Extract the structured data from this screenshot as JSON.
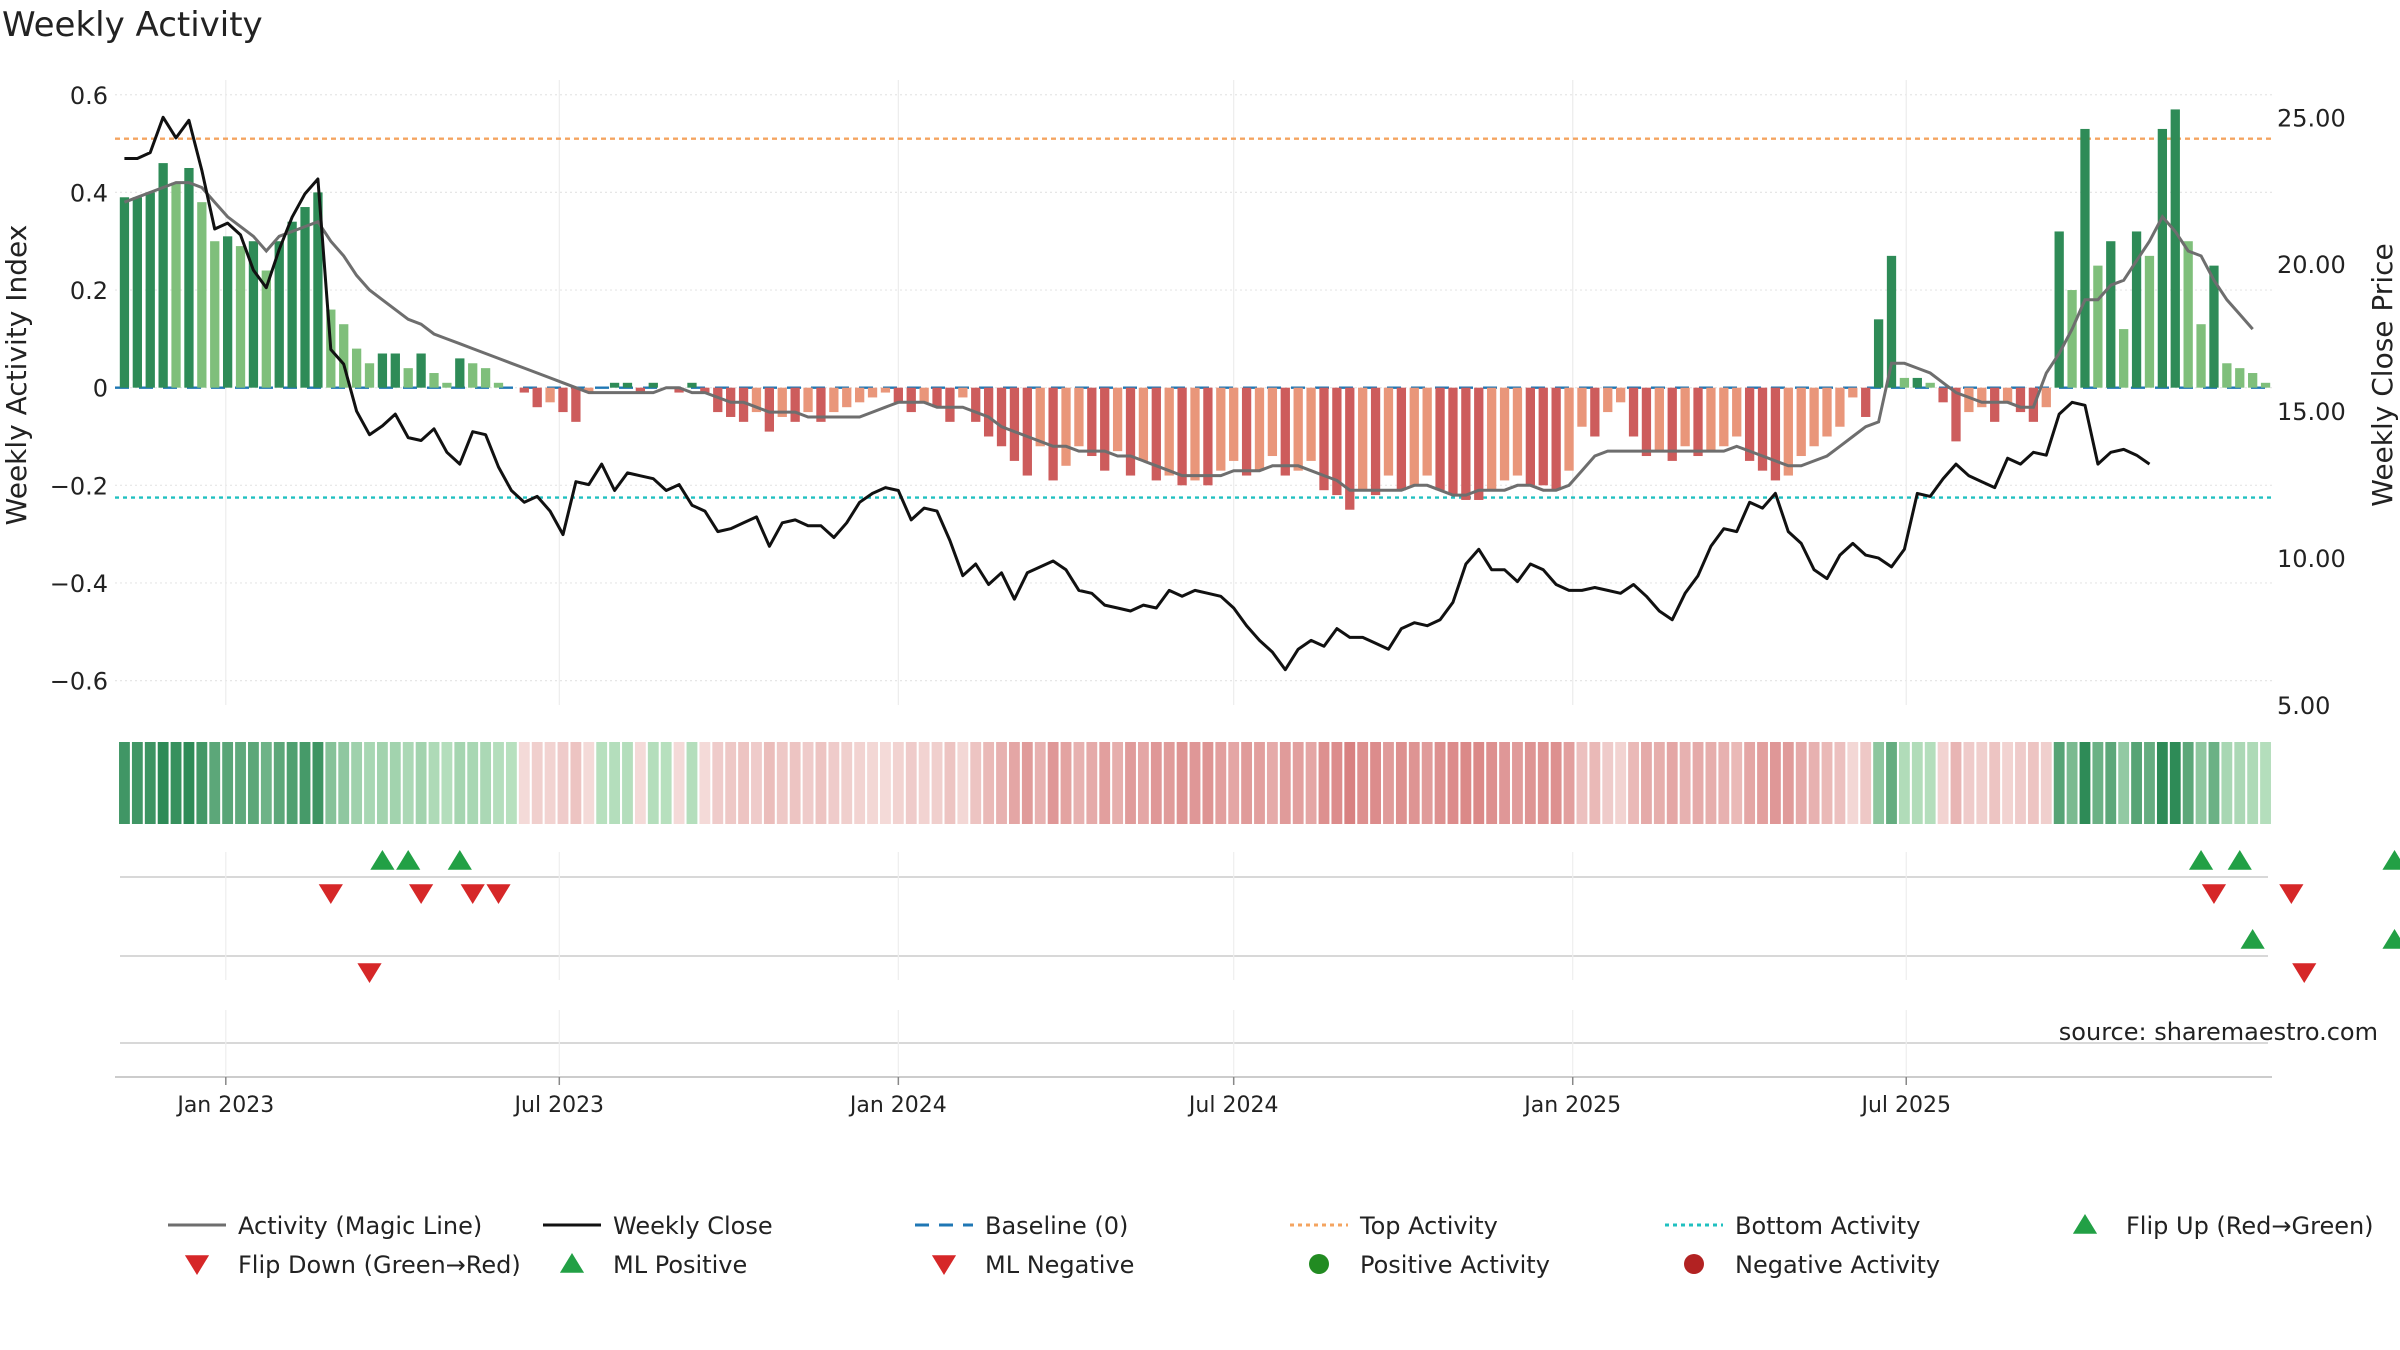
{
  "chart_data": {
    "type": "bar",
    "title": "Weekly Activity",
    "ylabel_left": "Weekly Activity Index",
    "ylabel_right": "Weekly Close Price",
    "source": "source: sharemaestro.com",
    "x_ticks": [
      "Jan 2023",
      "Jul 2023",
      "Jan 2024",
      "Jul 2024",
      "Jan 2025",
      "Jul 2025"
    ],
    "y_left": {
      "min": -0.65,
      "max": 0.62,
      "ticks": [
        0.6,
        0.4,
        0.2,
        0,
        -0.2,
        -0.4,
        -0.6
      ],
      "tick_labels": [
        "0.6",
        "0.4",
        "0.2",
        "0",
        "−0.2",
        "−0.4",
        "−0.6"
      ]
    },
    "y_right": {
      "min": 5,
      "max": 26.1,
      "ticks": [
        25,
        20,
        15,
        10,
        5
      ],
      "tick_labels": [
        "25.00",
        "20.00",
        "15.00",
        "10.00",
        "5.00"
      ]
    },
    "reference_lines": {
      "baseline": 0,
      "top_activity": 0.51,
      "bottom_activity": -0.225
    },
    "colors": {
      "strong_green": "#2e8b57",
      "light_green": "#7fbf7b",
      "strong_red": "#cd5c5c",
      "light_red": "#e9967a",
      "magic_line": "#6e6e6e",
      "close_line": "#111111",
      "baseline": "#1f77b4",
      "top": "#f4a460",
      "bottom": "#20c0c0",
      "marker_up": "#22a045",
      "marker_down": "#d62728",
      "pos_dot": "#228b22",
      "neg_dot": "#b22222"
    },
    "activity_bars": [
      0.39,
      0.39,
      0.4,
      0.46,
      0.42,
      0.45,
      0.38,
      0.3,
      0.31,
      0.29,
      0.3,
      0.24,
      0.3,
      0.34,
      0.37,
      0.4,
      0.16,
      0.13,
      0.08,
      0.05,
      0.07,
      0.07,
      0.04,
      0.07,
      0.03,
      0.01,
      0.06,
      0.05,
      0.04,
      0.01,
      0.0,
      -0.01,
      -0.04,
      -0.03,
      -0.05,
      -0.07,
      -0.01,
      0.0,
      0.01,
      0.01,
      -0.01,
      0.01,
      0.0,
      -0.01,
      0.01,
      -0.01,
      -0.05,
      -0.06,
      -0.07,
      -0.05,
      -0.09,
      -0.06,
      -0.07,
      -0.05,
      -0.07,
      -0.05,
      -0.04,
      -0.03,
      -0.02,
      -0.01,
      -0.03,
      -0.05,
      -0.03,
      -0.04,
      -0.07,
      -0.02,
      -0.07,
      -0.1,
      -0.12,
      -0.15,
      -0.18,
      -0.12,
      -0.19,
      -0.16,
      -0.12,
      -0.14,
      -0.17,
      -0.13,
      -0.18,
      -0.15,
      -0.19,
      -0.18,
      -0.2,
      -0.19,
      -0.2,
      -0.17,
      -0.15,
      -0.18,
      -0.17,
      -0.14,
      -0.18,
      -0.17,
      -0.15,
      -0.21,
      -0.22,
      -0.25,
      -0.21,
      -0.22,
      -0.18,
      -0.21,
      -0.2,
      -0.18,
      -0.21,
      -0.22,
      -0.23,
      -0.23,
      -0.21,
      -0.19,
      -0.18,
      -0.2,
      -0.2,
      -0.21,
      -0.17,
      -0.08,
      -0.1,
      -0.05,
      -0.03,
      -0.1,
      -0.14,
      -0.13,
      -0.15,
      -0.12,
      -0.14,
      -0.13,
      -0.12,
      -0.1,
      -0.15,
      -0.17,
      -0.19,
      -0.18,
      -0.14,
      -0.12,
      -0.1,
      -0.08,
      -0.02,
      -0.06,
      0.14,
      0.27,
      0.02,
      0.02,
      0.01,
      -0.03,
      -0.11,
      -0.05,
      -0.04,
      -0.07,
      -0.03,
      -0.05,
      -0.07,
      -0.04,
      0.32,
      0.2,
      0.53,
      0.25,
      0.3,
      0.12,
      0.32,
      0.27,
      0.53,
      0.57,
      0.3,
      0.13,
      0.25,
      0.05,
      0.04,
      0.03,
      0.01
    ],
    "magic_line": [
      0.38,
      0.39,
      0.4,
      0.41,
      0.42,
      0.42,
      0.41,
      0.38,
      0.35,
      0.33,
      0.31,
      0.28,
      0.31,
      0.32,
      0.33,
      0.34,
      0.3,
      0.27,
      0.23,
      0.2,
      0.18,
      0.16,
      0.14,
      0.13,
      0.11,
      0.1,
      0.09,
      0.08,
      0.07,
      0.06,
      0.05,
      0.04,
      0.03,
      0.02,
      0.01,
      0.0,
      -0.01,
      -0.01,
      -0.01,
      -0.01,
      -0.01,
      -0.01,
      0.0,
      0.0,
      -0.01,
      -0.01,
      -0.02,
      -0.03,
      -0.03,
      -0.04,
      -0.05,
      -0.05,
      -0.05,
      -0.06,
      -0.06,
      -0.06,
      -0.06,
      -0.06,
      -0.05,
      -0.04,
      -0.03,
      -0.03,
      -0.03,
      -0.04,
      -0.04,
      -0.04,
      -0.05,
      -0.06,
      -0.08,
      -0.09,
      -0.1,
      -0.11,
      -0.12,
      -0.12,
      -0.13,
      -0.13,
      -0.13,
      -0.14,
      -0.14,
      -0.15,
      -0.16,
      -0.17,
      -0.18,
      -0.18,
      -0.18,
      -0.18,
      -0.17,
      -0.17,
      -0.17,
      -0.16,
      -0.16,
      -0.16,
      -0.17,
      -0.18,
      -0.19,
      -0.21,
      -0.21,
      -0.21,
      -0.21,
      -0.21,
      -0.2,
      -0.2,
      -0.21,
      -0.22,
      -0.22,
      -0.21,
      -0.21,
      -0.21,
      -0.2,
      -0.2,
      -0.21,
      -0.21,
      -0.2,
      -0.17,
      -0.14,
      -0.13,
      -0.13,
      -0.13,
      -0.13,
      -0.13,
      -0.13,
      -0.13,
      -0.13,
      -0.13,
      -0.13,
      -0.12,
      -0.13,
      -0.14,
      -0.15,
      -0.16,
      -0.16,
      -0.15,
      -0.14,
      -0.12,
      -0.1,
      -0.08,
      -0.07,
      0.05,
      0.05,
      0.04,
      0.03,
      0.01,
      -0.01,
      -0.02,
      -0.03,
      -0.03,
      -0.03,
      -0.04,
      -0.04,
      0.03,
      0.07,
      0.12,
      0.18,
      0.18,
      0.21,
      0.22,
      0.26,
      0.3,
      0.35,
      0.32,
      0.28,
      0.27,
      0.22,
      0.18,
      0.15,
      0.12
    ],
    "weekly_close": [
      23.6,
      23.6,
      23.8,
      25.0,
      24.3,
      24.9,
      23.2,
      21.2,
      21.4,
      21.0,
      19.8,
      19.2,
      20.5,
      21.6,
      22.4,
      22.9,
      17.1,
      16.6,
      15.0,
      14.2,
      14.5,
      14.9,
      14.1,
      14.0,
      14.4,
      13.6,
      13.2,
      14.3,
      14.2,
      13.1,
      12.3,
      11.9,
      12.1,
      11.6,
      10.8,
      12.6,
      12.5,
      13.2,
      12.3,
      12.9,
      12.8,
      12.7,
      12.3,
      12.5,
      11.8,
      11.6,
      10.9,
      11.0,
      11.2,
      11.4,
      10.4,
      11.2,
      11.3,
      11.1,
      11.1,
      10.7,
      11.2,
      11.9,
      12.2,
      12.4,
      12.3,
      11.3,
      11.7,
      11.6,
      10.6,
      9.4,
      9.8,
      9.1,
      9.5,
      8.6,
      9.5,
      9.7,
      9.9,
      9.6,
      8.9,
      8.8,
      8.4,
      8.3,
      8.2,
      8.4,
      8.3,
      8.9,
      8.7,
      8.9,
      8.8,
      8.7,
      8.3,
      7.7,
      7.2,
      6.8,
      6.2,
      6.9,
      7.2,
      7.0,
      7.6,
      7.3,
      7.3,
      7.1,
      6.9,
      7.6,
      7.8,
      7.7,
      7.9,
      8.5,
      9.8,
      10.3,
      9.6,
      9.6,
      9.2,
      9.8,
      9.6,
      9.1,
      8.9,
      8.9,
      9.0,
      8.9,
      8.8,
      9.1,
      8.7,
      8.2,
      7.9,
      8.8,
      9.4,
      10.4,
      11.0,
      10.9,
      11.9,
      11.7,
      12.2,
      10.9,
      10.5,
      9.6,
      9.3,
      10.1,
      10.5,
      10.1,
      10.0,
      9.7,
      10.3,
      12.2,
      12.1,
      12.7,
      13.2,
      12.8,
      12.6,
      12.4,
      13.4,
      13.2,
      13.6,
      13.5,
      14.9,
      15.3,
      15.2,
      13.2,
      13.6,
      13.7,
      13.5,
      13.2
    ],
    "rows": {
      "row1_up": [
        20,
        22,
        26,
        161,
        164,
        176
      ],
      "row1_down": [
        16,
        23,
        27,
        29,
        162,
        168
      ],
      "row2_up": [
        165,
        176
      ],
      "row2_down": [
        19,
        169
      ]
    },
    "legend": [
      {
        "label": "Activity (Magic Line)",
        "symbol": "line-grey"
      },
      {
        "label": "Weekly Close",
        "symbol": "line-black"
      },
      {
        "label": "Baseline (0)",
        "symbol": "dash-blue"
      },
      {
        "label": "Top Activity",
        "symbol": "dot-orange"
      },
      {
        "label": "Bottom Activity",
        "symbol": "dot-cyan"
      },
      {
        "label": "Flip Up (Red→Green)",
        "symbol": "tri-up"
      },
      {
        "label": "Flip Down (Green→Red)",
        "symbol": "tri-down"
      },
      {
        "label": "ML Positive",
        "symbol": "tri-up"
      },
      {
        "label": "ML Negative",
        "symbol": "tri-down"
      },
      {
        "label": "Positive Activity",
        "symbol": "circle-green"
      },
      {
        "label": "Negative Activity",
        "symbol": "circle-red"
      }
    ]
  }
}
